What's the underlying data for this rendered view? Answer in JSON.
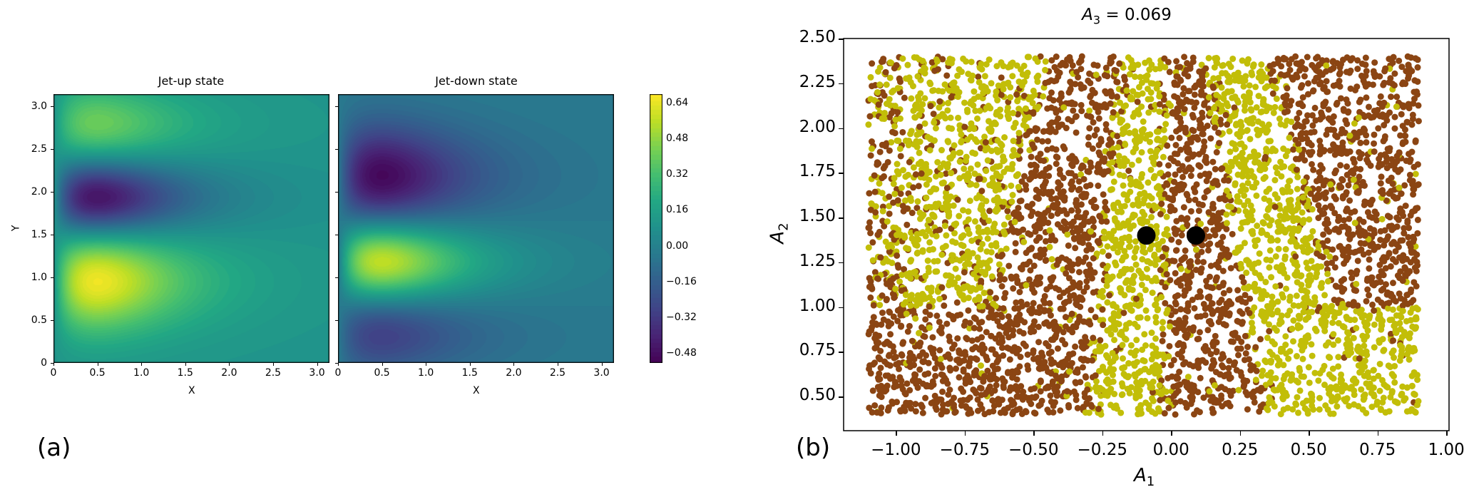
{
  "panel_labels": {
    "a": "(a)",
    "b": "(b)"
  },
  "chart_data": [
    {
      "type": "heatmap",
      "subtype": "filled-contour",
      "colormap": "viridis",
      "panels": [
        {
          "title": "Jet-up state",
          "xlabel": "X",
          "ylabel": "Y"
        },
        {
          "title": "Jet-down state",
          "xlabel": "X",
          "ylabel": ""
        }
      ],
      "xlim": [
        0,
        3.1416
      ],
      "ylim": [
        0,
        3.1416
      ],
      "xticks": [
        "0",
        "0.5",
        "1.0",
        "1.5",
        "2.0",
        "2.5",
        "3.0"
      ],
      "yticks": [
        "0",
        "0.5",
        "1.0",
        "1.5",
        "2.0",
        "2.5",
        "3.0"
      ],
      "colorbar": {
        "range": [
          -0.52,
          0.68
        ],
        "ticks": [
          "0.64",
          "0.48",
          "0.32",
          "0.16",
          "0.00",
          "−0.16",
          "−0.32",
          "−0.48"
        ]
      },
      "features": {
        "jet_up": [
          {
            "x": 0.5,
            "y": 0.97,
            "value": 0.66
          },
          {
            "x": 0.5,
            "y": 1.92,
            "value": -0.5
          },
          {
            "x": 0.5,
            "y": 2.78,
            "value": 0.42
          }
        ],
        "jet_down": [
          {
            "x": 0.5,
            "y": 2.18,
            "value": -0.5
          },
          {
            "x": 0.5,
            "y": 1.2,
            "value": 0.6
          },
          {
            "x": 0.5,
            "y": 0.35,
            "value": -0.3
          }
        ]
      }
    },
    {
      "type": "scatter",
      "title_var": "A",
      "title_sub": "3",
      "title_rest": " = 0.069",
      "xlabel_var": "A",
      "xlabel_sub": "1",
      "ylabel_var": "A",
      "ylabel_sub": "2",
      "xlim": [
        -1.19,
        1.01
      ],
      "ylim": [
        0.31,
        2.5
      ],
      "xticks": [
        {
          "v": -1.0,
          "label": "−1.00"
        },
        {
          "v": -0.75,
          "label": "−0.75"
        },
        {
          "v": -0.5,
          "label": "−0.50"
        },
        {
          "v": -0.25,
          "label": "−0.25"
        },
        {
          "v": 0.0,
          "label": "0.00"
        },
        {
          "v": 0.25,
          "label": "0.25"
        },
        {
          "v": 0.5,
          "label": "0.50"
        },
        {
          "v": 0.75,
          "label": "0.75"
        },
        {
          "v": 1.0,
          "label": "1.00"
        }
      ],
      "yticks": [
        {
          "v": 0.5,
          "label": "0.50"
        },
        {
          "v": 0.75,
          "label": "0.75"
        },
        {
          "v": 1.0,
          "label": "1.00"
        },
        {
          "v": 1.25,
          "label": "1.25"
        },
        {
          "v": 1.5,
          "label": "1.50"
        },
        {
          "v": 1.75,
          "label": "1.75"
        },
        {
          "v": 2.0,
          "label": "2.00"
        },
        {
          "v": 2.25,
          "label": "2.25"
        },
        {
          "v": 2.5,
          "label": "2.50"
        }
      ],
      "points_extent": {
        "A1": [
          -1.1,
          0.9
        ],
        "A2": [
          0.4,
          2.4
        ]
      },
      "class_colors": {
        "brown": "#8B4513",
        "yellow": "#C2BE08"
      },
      "highlight_points": [
        {
          "A1": -0.09,
          "A2": 1.4,
          "color": "#000000"
        },
        {
          "A1": 0.09,
          "A2": 1.4,
          "color": "#000000"
        }
      ]
    }
  ]
}
